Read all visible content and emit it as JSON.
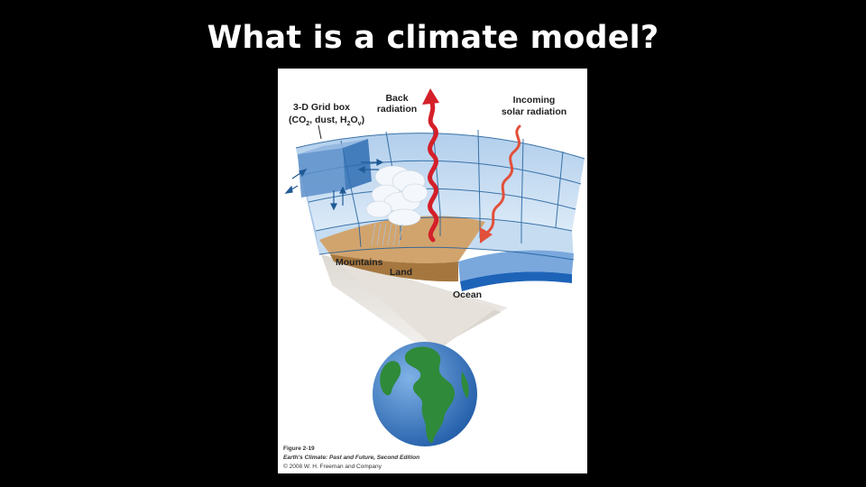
{
  "slide": {
    "title": "What is a climate model?"
  },
  "diagram": {
    "labels": {
      "grid_box_line1": "3-D Grid box",
      "grid_box_line2_a": "(CO",
      "grid_box_line2_sub1": "2",
      "grid_box_line2_b": ", dust, H",
      "grid_box_line2_sub2": "2",
      "grid_box_line2_c": "O",
      "grid_box_line2_sub3": "v",
      "grid_box_line2_d": ")",
      "back_radiation_line1": "Back",
      "back_radiation_line2": "radiation",
      "incoming_line1": "Incoming",
      "incoming_line2": "solar radiation",
      "mountains": "Mountains",
      "land": "Land",
      "ocean": "Ocean"
    },
    "colors": {
      "atmosphere": "#bcd6ef",
      "grid_lines": "#1f5f9a",
      "land": "#c99a63",
      "ocean": "#3a78c2",
      "back_radiation": "#d4202a",
      "solar_radiation": "#e2503a",
      "globe_ocean": "#2f72c0",
      "globe_land": "#2f8a3a"
    }
  },
  "caption": {
    "figure": "Figure 2-19",
    "book": "Earth's Climate: Past and Future, Second Edition",
    "copyright": "© 2008 W. H. Freeman and Company"
  }
}
